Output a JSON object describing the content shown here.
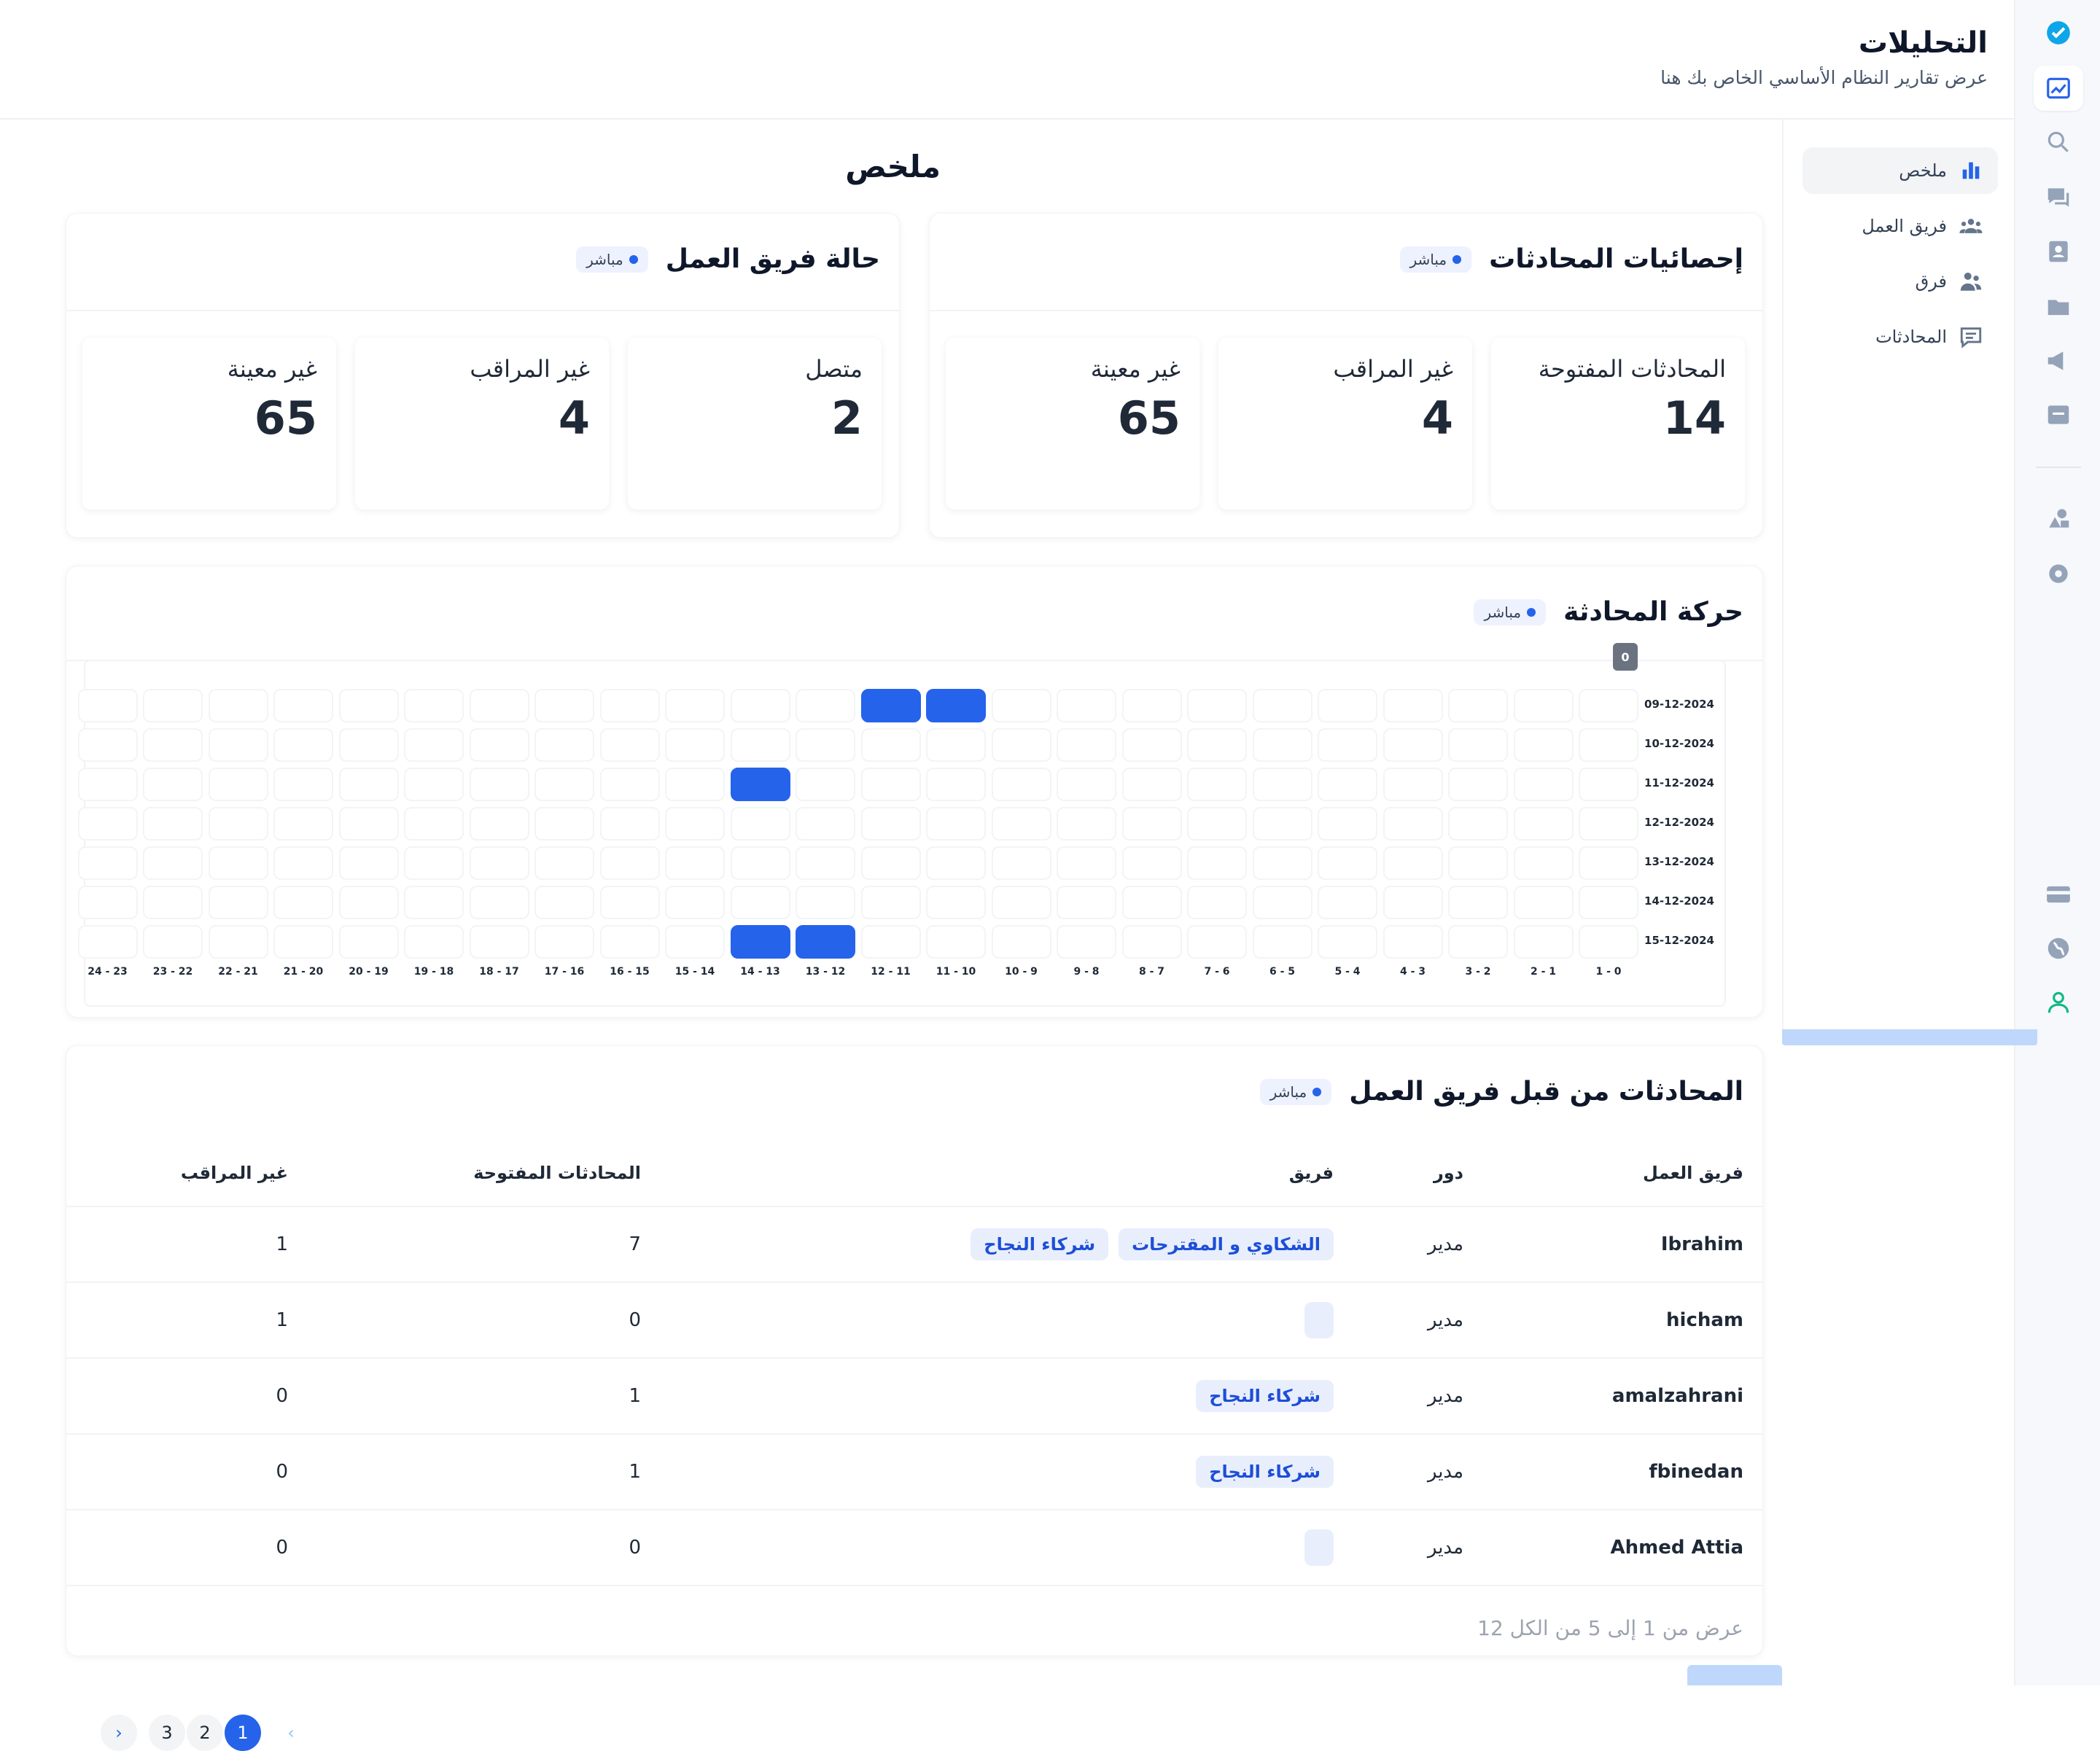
{
  "header": {
    "title": "التحليلات",
    "subtitle": "عرض تقارير النظام الأساسي الخاص بك هنا"
  },
  "sidebar": {
    "items": [
      {
        "label": "ملخص",
        "icon": "bar-chart-icon",
        "active": true
      },
      {
        "label": "فريق العمل",
        "icon": "users-icon"
      },
      {
        "label": "فرق",
        "icon": "team-icon"
      },
      {
        "label": "المحادثات",
        "icon": "message-icon"
      }
    ]
  },
  "rail": {
    "icons": [
      "logo-icon",
      "analytics-icon",
      "search-icon",
      "chat-icon",
      "contacts-icon",
      "folder-icon",
      "campaign-icon",
      "inbox-icon",
      "shapes-icon",
      "settings-icon",
      "billing-icon",
      "globe-icon",
      "profile-icon"
    ]
  },
  "page_title": "ملخص",
  "live_label": "مباشر",
  "conv_stats": {
    "title": "إحصائيات المحادثات",
    "items": [
      {
        "label": "المحادثات المفتوحة",
        "value": "14"
      },
      {
        "label": "غير المراقب",
        "value": "4"
      },
      {
        "label": "غير معينة",
        "value": "65"
      }
    ]
  },
  "team_status": {
    "title": "حالة فريق العمل",
    "items": [
      {
        "label": "متصل",
        "value": "2"
      },
      {
        "label": "غير المراقب",
        "value": "4"
      },
      {
        "label": "غير معينة",
        "value": "65"
      }
    ]
  },
  "traffic": {
    "title": "حركة المحادثة",
    "tooltip": "0"
  },
  "chart_data": {
    "type": "heatmap",
    "title": "حركة المحادثة",
    "rows": [
      "09-12-2024",
      "10-12-2024",
      "11-12-2024",
      "12-12-2024",
      "13-12-2024",
      "14-12-2024",
      "15-12-2024"
    ],
    "columns": [
      "0 - 1",
      "1 - 2",
      "2 - 3",
      "3 - 4",
      "4 - 5",
      "5 - 6",
      "6 - 7",
      "7 - 8",
      "8 - 9",
      "9 - 10",
      "10 - 11",
      "11 - 12",
      "12 - 13",
      "13 - 14",
      "14 - 15",
      "15 - 16",
      "16 - 17",
      "17 - 18",
      "18 - 19",
      "19 - 20",
      "20 - 21",
      "21 - 22",
      "22 - 23",
      "23 - 24"
    ],
    "column_order": "right-to-left",
    "active_cells": [
      {
        "row": "09-12-2024",
        "col": "10 - 11"
      },
      {
        "row": "09-12-2024",
        "col": "11 - 12"
      },
      {
        "row": "11-12-2024",
        "col": "13 - 14"
      },
      {
        "row": "15-12-2024",
        "col": "12 - 13"
      },
      {
        "row": "15-12-2024",
        "col": "13 - 14"
      }
    ],
    "active_color": "#2563eb"
  },
  "team_conversations": {
    "title": "المحادثات من قبل فريق العمل",
    "columns": [
      "فريق العمل",
      "دور",
      "فريق",
      "المحادثات المفتوحة",
      "غير المراقب"
    ],
    "rows": [
      {
        "name": "Ibrahim",
        "role": "مدير",
        "teams": [
          "الشكاوي و المقترحات",
          "شركاء النجاح"
        ],
        "open": "7",
        "unattended": "1"
      },
      {
        "name": "hicham",
        "role": "مدير",
        "teams": [],
        "open": "0",
        "unattended": "1"
      },
      {
        "name": "amalzahrani",
        "role": "مدير",
        "teams": [
          "شركاء النجاح"
        ],
        "open": "1",
        "unattended": "0"
      },
      {
        "name": "fbinedan",
        "role": "مدير",
        "teams": [
          "شركاء النجاح"
        ],
        "open": "1",
        "unattended": "0"
      },
      {
        "name": "Ahmed Attia",
        "role": "مدير",
        "teams": [],
        "open": "0",
        "unattended": "0"
      }
    ],
    "footer": "عرض من 1 إلى 5 من الكل 12",
    "pages": [
      "1",
      "2",
      "3"
    ],
    "current_page": "1"
  }
}
